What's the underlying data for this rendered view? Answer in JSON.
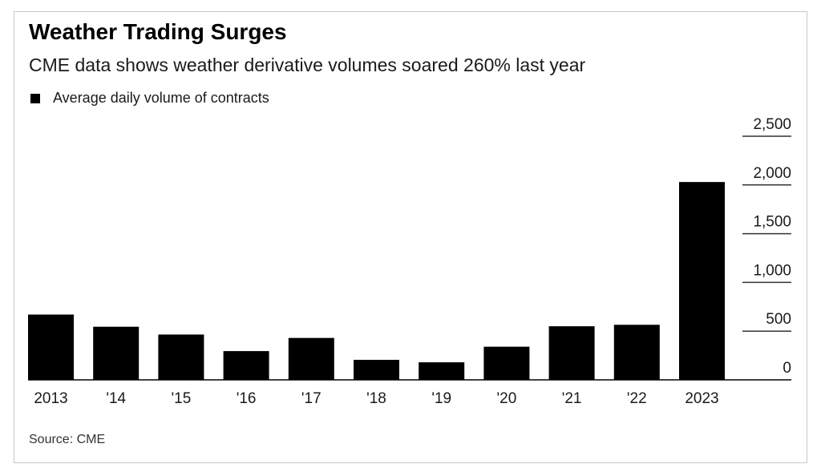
{
  "chart_data": {
    "type": "bar",
    "title": "Weather Trading Surges",
    "subtitle": "CME data shows weather derivative volumes soared 260% last year",
    "legend": [
      {
        "name": "Average daily volume of contracts",
        "color": "#000000"
      }
    ],
    "legend_placement": "top-left",
    "categories": [
      "2013",
      "'14",
      "'15",
      "'16",
      "'17",
      "'18",
      "'19",
      "'20",
      "'21",
      "'22",
      "2023"
    ],
    "series": [
      {
        "name": "Average daily volume of contracts",
        "color": "#000000",
        "values": [
          670,
          545,
          465,
          295,
          430,
          205,
          180,
          340,
          550,
          565,
          2030
        ]
      }
    ],
    "y_ticks": [
      "2,500",
      "2,000",
      "1,500",
      "1,000",
      "500",
      "0"
    ],
    "y_tick_values": [
      2500,
      2000,
      1500,
      1000,
      500,
      0
    ],
    "ylim": [
      0,
      2500
    ],
    "y_axis_position": "right",
    "grid": false,
    "source": "Source: CME"
  }
}
